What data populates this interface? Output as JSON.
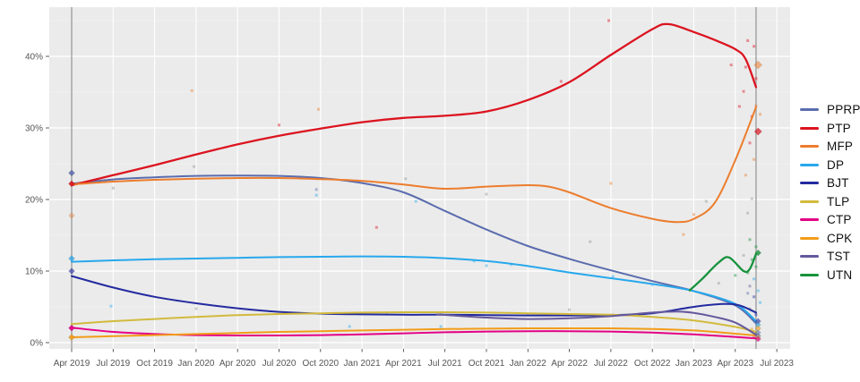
{
  "chart_data": {
    "type": "line",
    "title": "",
    "xlabel": "",
    "ylabel": "",
    "grid": true,
    "legend_position": "right-outside",
    "x_unit": "quarters since Apr 2019",
    "x_tick_labels": [
      "Apr 2019",
      "Jul 2019",
      "Oct 2019",
      "Jan 2020",
      "Apr 2020",
      "Jul 2020",
      "Oct 2020",
      "Jan 2021",
      "Apr 2021",
      "Jul 2021",
      "Oct 2021",
      "Jan 2022",
      "Apr 2022",
      "Jul 2022",
      "Oct 2022",
      "Jan 2023",
      "Apr 2023",
      "Jul 2023"
    ],
    "y_tick_labels": [
      "0%",
      "10%",
      "20%",
      "30%",
      "40%"
    ],
    "y_tick_values": [
      0,
      10,
      20,
      30,
      40
    ],
    "ylim": [
      -1.5,
      47.5
    ],
    "xlim": [
      -0.55,
      17.32
    ],
    "election_vlines_q": [
      0,
      16.5
    ],
    "series": [
      {
        "name": "PPRP",
        "color": "#5a6cae",
        "width": 2,
        "points": [
          [
            0,
            22.2
          ],
          [
            1,
            22.8
          ],
          [
            2,
            23.1
          ],
          [
            3,
            23.3
          ],
          [
            4,
            23.35
          ],
          [
            5,
            23.3
          ],
          [
            6,
            23.0
          ],
          [
            7,
            22.3
          ],
          [
            8,
            21.0
          ],
          [
            9,
            18.4
          ],
          [
            10,
            15.8
          ],
          [
            11,
            13.5
          ],
          [
            12,
            11.7
          ],
          [
            13,
            10.1
          ],
          [
            14,
            8.6
          ],
          [
            15,
            7.2
          ],
          [
            16,
            5.2
          ],
          [
            16.5,
            2.7
          ]
        ]
      },
      {
        "name": "PTP",
        "color": "#dc1420",
        "width": 2.3,
        "points": [
          [
            0,
            22.0
          ],
          [
            1,
            23.4
          ],
          [
            2,
            24.8
          ],
          [
            3,
            26.3
          ],
          [
            4,
            27.7
          ],
          [
            5,
            28.9
          ],
          [
            6,
            29.9
          ],
          [
            7,
            30.8
          ],
          [
            8,
            31.4
          ],
          [
            9,
            31.7
          ],
          [
            10,
            32.3
          ],
          [
            11,
            33.9
          ],
          [
            12,
            36.4
          ],
          [
            13,
            40.2
          ],
          [
            14,
            43.8
          ],
          [
            14.4,
            44.5
          ],
          [
            15,
            43.4
          ],
          [
            15.5,
            42.3
          ],
          [
            16,
            41.0
          ],
          [
            16.25,
            39.6
          ],
          [
            16.5,
            35.7
          ]
        ]
      },
      {
        "name": "MFP",
        "color": "#ec7d2d",
        "width": 2,
        "points": [
          [
            0,
            22.1
          ],
          [
            1,
            22.5
          ],
          [
            2,
            22.75
          ],
          [
            3,
            22.9
          ],
          [
            4,
            23.0
          ],
          [
            5,
            23.0
          ],
          [
            6,
            22.85
          ],
          [
            7,
            22.6
          ],
          [
            8,
            22.1
          ],
          [
            9,
            21.5
          ],
          [
            10,
            21.8
          ],
          [
            11,
            22.0
          ],
          [
            11.5,
            21.8
          ],
          [
            12,
            21.0
          ],
          [
            13,
            18.8
          ],
          [
            14,
            17.3
          ],
          [
            14.6,
            16.85
          ],
          [
            15,
            17.3
          ],
          [
            15.5,
            19.5
          ],
          [
            16,
            25.5
          ],
          [
            16.5,
            32.9
          ]
        ]
      },
      {
        "name": "DP",
        "color": "#27a8ec",
        "width": 2,
        "points": [
          [
            0,
            11.3
          ],
          [
            1,
            11.5
          ],
          [
            2,
            11.65
          ],
          [
            3,
            11.75
          ],
          [
            4,
            11.85
          ],
          [
            5,
            11.95
          ],
          [
            6,
            12.0
          ],
          [
            7,
            12.05
          ],
          [
            8,
            12.0
          ],
          [
            9,
            11.8
          ],
          [
            10,
            11.4
          ],
          [
            11,
            10.7
          ],
          [
            12,
            9.8
          ],
          [
            13,
            9.0
          ],
          [
            14,
            8.2
          ],
          [
            15,
            7.2
          ],
          [
            16,
            5.4
          ],
          [
            16.5,
            3.0
          ]
        ]
      },
      {
        "name": "BJT",
        "color": "#232a9f",
        "width": 2,
        "points": [
          [
            0,
            9.3
          ],
          [
            1,
            7.7
          ],
          [
            2,
            6.4
          ],
          [
            3,
            5.5
          ],
          [
            4,
            4.8
          ],
          [
            5,
            4.3
          ],
          [
            6,
            4.05
          ],
          [
            7,
            3.95
          ],
          [
            8,
            3.9
          ],
          [
            9,
            3.9
          ],
          [
            10,
            3.85
          ],
          [
            11,
            3.8
          ],
          [
            12,
            3.8
          ],
          [
            13,
            3.85
          ],
          [
            14,
            4.1
          ],
          [
            15,
            5.0
          ],
          [
            15.7,
            5.4
          ],
          [
            16.1,
            5.2
          ],
          [
            16.5,
            4.2
          ]
        ]
      },
      {
        "name": "TLP",
        "color": "#d2ba3c",
        "width": 2,
        "points": [
          [
            0,
            2.6
          ],
          [
            1,
            3.0
          ],
          [
            2,
            3.3
          ],
          [
            3,
            3.6
          ],
          [
            4,
            3.85
          ],
          [
            5,
            4.0
          ],
          [
            6,
            4.1
          ],
          [
            7,
            4.2
          ],
          [
            8,
            4.25
          ],
          [
            9,
            4.25
          ],
          [
            10,
            4.2
          ],
          [
            11,
            4.1
          ],
          [
            12,
            4.0
          ],
          [
            13,
            3.9
          ],
          [
            14,
            3.6
          ],
          [
            15,
            3.1
          ],
          [
            16,
            2.2
          ],
          [
            16.5,
            1.5
          ]
        ]
      },
      {
        "name": "CTP",
        "color": "#e40084",
        "width": 2,
        "points": [
          [
            0,
            2.1
          ],
          [
            1,
            1.5
          ],
          [
            2,
            1.2
          ],
          [
            3,
            1.05
          ],
          [
            4,
            1.0
          ],
          [
            5,
            1.0
          ],
          [
            6,
            1.05
          ],
          [
            7,
            1.15
          ],
          [
            8,
            1.3
          ],
          [
            9,
            1.45
          ],
          [
            10,
            1.55
          ],
          [
            11,
            1.6
          ],
          [
            12,
            1.6
          ],
          [
            13,
            1.55
          ],
          [
            14,
            1.4
          ],
          [
            15,
            1.15
          ],
          [
            16,
            0.8
          ],
          [
            16.5,
            0.6
          ]
        ]
      },
      {
        "name": "CPK",
        "color": "#f29c18",
        "width": 2,
        "points": [
          [
            0,
            0.75
          ],
          [
            1,
            0.9
          ],
          [
            2,
            1.05
          ],
          [
            3,
            1.2
          ],
          [
            4,
            1.35
          ],
          [
            5,
            1.5
          ],
          [
            6,
            1.6
          ],
          [
            7,
            1.7
          ],
          [
            8,
            1.8
          ],
          [
            9,
            1.9
          ],
          [
            10,
            1.95
          ],
          [
            11,
            2.0
          ],
          [
            12,
            2.0
          ],
          [
            13,
            2.0
          ],
          [
            14,
            1.9
          ],
          [
            15,
            1.7
          ],
          [
            16,
            1.25
          ],
          [
            16.5,
            1.0
          ]
        ]
      },
      {
        "name": "TST",
        "color": "#64589d",
        "width": 2,
        "points": [
          [
            8.8,
            3.95
          ],
          [
            9.3,
            3.75
          ],
          [
            10,
            3.5
          ],
          [
            11,
            3.3
          ],
          [
            12,
            3.4
          ],
          [
            13,
            3.7
          ],
          [
            14,
            4.2
          ],
          [
            14.6,
            4.35
          ],
          [
            15,
            4.15
          ],
          [
            15.5,
            3.6
          ],
          [
            16,
            2.8
          ],
          [
            16.5,
            1.1
          ]
        ]
      },
      {
        "name": "UTN",
        "color": "#17923c",
        "width": 2.3,
        "points": [
          [
            14.9,
            7.3
          ],
          [
            15.2,
            8.9
          ],
          [
            15.6,
            11.2
          ],
          [
            15.85,
            11.9
          ],
          [
            16.2,
            10.0
          ],
          [
            16.35,
            10.3
          ],
          [
            16.5,
            12.4
          ]
        ]
      }
    ],
    "poll_scatter": [
      [
        1.0,
        21.6,
        "NA"
      ],
      [
        0.95,
        5.1,
        "DP"
      ],
      [
        2.9,
        35.2,
        "MFP"
      ],
      [
        2.95,
        24.6,
        "NA"
      ],
      [
        3.0,
        4.75,
        "NA"
      ],
      [
        5.0,
        30.4,
        "PTP"
      ],
      [
        5.9,
        21.4,
        "PPRP"
      ],
      [
        5.95,
        32.6,
        "MFP"
      ],
      [
        5.9,
        20.6,
        "DP"
      ],
      [
        6.7,
        2.25,
        "DP"
      ],
      [
        7.35,
        16.1,
        "PTP"
      ],
      [
        7.6,
        4.0,
        "NA"
      ],
      [
        8.05,
        22.9,
        "NA"
      ],
      [
        8.3,
        19.75,
        "DP"
      ],
      [
        8.9,
        4.1,
        "NA"
      ],
      [
        8.9,
        2.25,
        "DP"
      ],
      [
        9.7,
        11.4,
        "DP"
      ],
      [
        10.0,
        10.75,
        "DP"
      ],
      [
        10.0,
        20.75,
        "NA"
      ],
      [
        10.6,
        10.9,
        "DP"
      ],
      [
        11.0,
        3.9,
        "NA"
      ],
      [
        11.8,
        36.5,
        "PTP"
      ],
      [
        12.0,
        4.6,
        "NA"
      ],
      [
        12.5,
        14.1,
        "NA"
      ],
      [
        12.95,
        45.0,
        "PTP"
      ],
      [
        13.0,
        22.25,
        "MFP"
      ],
      [
        13.05,
        9.25,
        "DP"
      ],
      [
        13.05,
        3.9,
        "NA"
      ],
      [
        14.0,
        8.1,
        "DP"
      ],
      [
        14.75,
        15.1,
        "MFP"
      ],
      [
        15.0,
        17.9,
        "MFP"
      ],
      [
        15.3,
        19.75,
        "NA"
      ],
      [
        15.6,
        8.3,
        "NA"
      ],
      [
        15.9,
        38.8,
        "PTP"
      ],
      [
        16.0,
        9.4,
        "UTN"
      ],
      [
        16.1,
        33.0,
        "PTP"
      ],
      [
        16.2,
        12.2,
        "NA"
      ],
      [
        16.3,
        6.9,
        "PPRP"
      ],
      [
        16.3,
        42.2,
        "PTP"
      ],
      [
        16.45,
        41.4,
        "PTP"
      ],
      [
        16.25,
        38.5,
        "PTP"
      ],
      [
        16.5,
        36.9,
        "PTP"
      ],
      [
        16.2,
        35.1,
        "PTP"
      ],
      [
        16.4,
        31.6,
        "PTP"
      ],
      [
        16.35,
        27.9,
        "PTP"
      ],
      [
        16.5,
        33.1,
        "MFP"
      ],
      [
        16.6,
        31.9,
        "MFP"
      ],
      [
        16.45,
        25.6,
        "MFP"
      ],
      [
        16.25,
        23.4,
        "MFP"
      ],
      [
        16.4,
        20.1,
        "NA"
      ],
      [
        16.3,
        18.1,
        "NA"
      ],
      [
        16.35,
        14.4,
        "UTN"
      ],
      [
        16.5,
        13.4,
        "UTN"
      ],
      [
        16.4,
        11.6,
        "UTN"
      ],
      [
        16.5,
        10.6,
        "UTN"
      ],
      [
        16.3,
        9.75,
        "UTN"
      ],
      [
        16.45,
        8.9,
        "DP"
      ],
      [
        16.35,
        7.9,
        "TST"
      ],
      [
        16.55,
        7.25,
        "DP"
      ],
      [
        16.45,
        6.4,
        "BJT"
      ],
      [
        16.6,
        5.6,
        "DP"
      ],
      [
        16.35,
        4.75,
        "NA"
      ],
      [
        16.5,
        3.9,
        "BJT"
      ],
      [
        16.45,
        3.1,
        "DP"
      ],
      [
        16.55,
        2.6,
        "NA"
      ],
      [
        16.4,
        1.9,
        "CPK"
      ],
      [
        16.5,
        1.4,
        "TLP"
      ],
      [
        16.45,
        0.9,
        "CTP"
      ]
    ],
    "election_results_2019": [
      {
        "party": "PPRP",
        "value": 23.7,
        "opacity": 0.85
      },
      {
        "party": "PTP",
        "value": 22.2,
        "opacity": 0.9
      },
      {
        "party": "MFP",
        "value": 17.75,
        "opacity": 0.4
      },
      {
        "party": "DP",
        "value": 11.75,
        "opacity": 0.75
      },
      {
        "party": "BJT",
        "value": 10.0,
        "opacity": 0.6
      },
      {
        "party": "CTP",
        "value": 2.05,
        "opacity": 0.9
      },
      {
        "party": "CPK",
        "value": 0.75,
        "opacity": 0.85
      }
    ],
    "election_results_2023": [
      {
        "party": "MFP",
        "value": 38.8,
        "opacity": 0.55,
        "size": 4.6
      },
      {
        "party": "PTP",
        "value": 29.5,
        "opacity": 0.7,
        "size": 4.2
      },
      {
        "party": "UTN",
        "value": 12.55,
        "opacity": 0.8,
        "size": 3.4
      },
      {
        "party": "BJT",
        "value": 3.0,
        "opacity": 0.6,
        "size": 3.2
      },
      {
        "party": "DP",
        "value": 2.5,
        "opacity": 0.55,
        "size": 3.2
      },
      {
        "party": "CPK",
        "value": 2.0,
        "opacity": 0.6,
        "size": 3.2
      },
      {
        "party": "PPRP",
        "value": 1.4,
        "opacity": 0.55,
        "size": 3.2
      },
      {
        "party": "TST",
        "value": 0.95,
        "opacity": 0.55,
        "size": 3.2
      },
      {
        "party": "TLP",
        "value": 0.7,
        "opacity": 0.5,
        "size": 3.2
      },
      {
        "party": "CTP",
        "value": 0.5,
        "opacity": 0.65,
        "size": 3.2
      }
    ],
    "legend_entries": [
      "PPRP",
      "PTP",
      "MFP",
      "DP",
      "BJT",
      "TLP",
      "CTP",
      "CPK",
      "TST",
      "UTN"
    ]
  },
  "colors": {
    "panel_bg": "#ebebeb",
    "grid_major": "#ffffff",
    "grid_minor": "#f4f4f4",
    "axis_text": "#555555",
    "tick_mark": "#333333",
    "election_line": "#9e9e9e",
    "scatter_na": "#8a8a8a",
    "legend_text": "#111111"
  }
}
